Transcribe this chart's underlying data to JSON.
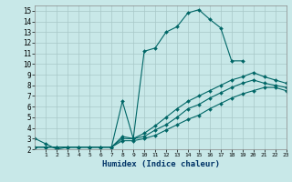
{
  "xlabel": "Humidex (Indice chaleur)",
  "bg_color": "#c8e8e8",
  "grid_color": "#b0c8c8",
  "line_color": "#006666",
  "xlim": [
    0,
    23
  ],
  "ylim": [
    2,
    15.5
  ],
  "xtick_min": 1,
  "xtick_max": 23,
  "yticks": [
    2,
    3,
    4,
    5,
    6,
    7,
    8,
    9,
    10,
    11,
    12,
    13,
    14,
    15
  ],
  "lines": [
    {
      "x": [
        0,
        1,
        2,
        3,
        4,
        5,
        6,
        7,
        8,
        9,
        10,
        11,
        12,
        13,
        14,
        15,
        16,
        17,
        18,
        19,
        20,
        21
      ],
      "y": [
        3.0,
        2.5,
        2.0,
        2.2,
        2.2,
        2.2,
        2.2,
        2.2,
        6.5,
        3.0,
        11.2,
        11.5,
        13.0,
        13.5,
        14.8,
        15.1,
        14.2,
        13.4,
        10.3,
        10.3,
        null,
        null
      ]
    },
    {
      "x": [
        0,
        1,
        2,
        3,
        4,
        5,
        6,
        7,
        8,
        9,
        10,
        11,
        12,
        13,
        14,
        15,
        16,
        17,
        18,
        19,
        20,
        21,
        22,
        23
      ],
      "y": [
        2.2,
        2.2,
        2.2,
        2.2,
        2.2,
        2.2,
        2.2,
        2.2,
        3.2,
        3.0,
        3.5,
        4.2,
        5.0,
        5.8,
        6.5,
        7.0,
        7.5,
        8.0,
        8.5,
        8.8,
        9.2,
        8.8,
        8.5,
        8.2
      ]
    },
    {
      "x": [
        0,
        1,
        2,
        3,
        4,
        5,
        6,
        7,
        8,
        9,
        10,
        11,
        12,
        13,
        14,
        15,
        16,
        17,
        18,
        19,
        20,
        21,
        22,
        23
      ],
      "y": [
        2.2,
        2.2,
        2.2,
        2.2,
        2.2,
        2.2,
        2.2,
        2.2,
        3.0,
        3.0,
        3.2,
        3.8,
        4.3,
        5.0,
        5.8,
        6.2,
        6.8,
        7.3,
        7.8,
        8.2,
        8.5,
        8.2,
        8.0,
        7.8
      ]
    },
    {
      "x": [
        0,
        1,
        2,
        3,
        4,
        5,
        6,
        7,
        8,
        9,
        10,
        11,
        12,
        13,
        14,
        15,
        16,
        17,
        18,
        19,
        20,
        21,
        22,
        23
      ],
      "y": [
        2.2,
        2.2,
        2.2,
        2.2,
        2.2,
        2.2,
        2.2,
        2.2,
        2.8,
        2.8,
        3.0,
        3.3,
        3.8,
        4.3,
        4.8,
        5.2,
        5.8,
        6.3,
        6.8,
        7.2,
        7.5,
        7.8,
        7.8,
        7.5
      ]
    }
  ]
}
